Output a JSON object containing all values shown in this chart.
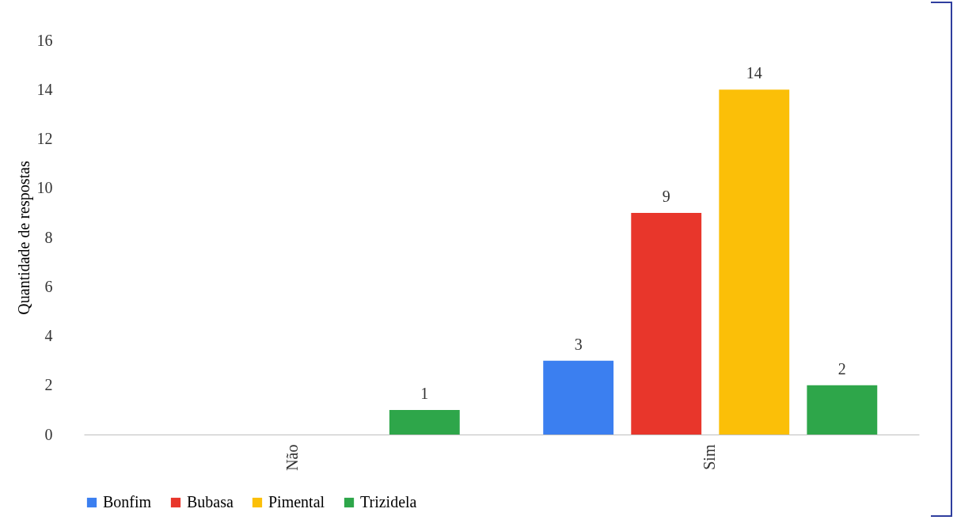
{
  "chart_data": {
    "type": "bar",
    "ylabel": "Quantidade de respostas",
    "categories": [
      "Não",
      "Sim"
    ],
    "series": [
      {
        "name": "Bonfim",
        "color": "#3b7ff0",
        "values": [
          null,
          3
        ]
      },
      {
        "name": "Bubasa",
        "color": "#e8362b",
        "values": [
          null,
          9
        ]
      },
      {
        "name": "Pimental",
        "color": "#fbbf08",
        "values": [
          null,
          14
        ]
      },
      {
        "name": "Trizidela",
        "color": "#2ea64a",
        "values": [
          1,
          2
        ]
      }
    ],
    "ylim": [
      0,
      16
    ],
    "yticks": [
      0,
      2,
      4,
      6,
      8,
      10,
      12,
      14,
      16
    ],
    "data_labels": true,
    "legend": "bottom",
    "grid": false
  }
}
